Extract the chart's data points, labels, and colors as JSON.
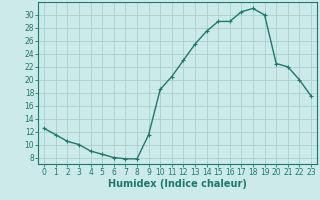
{
  "x": [
    0,
    1,
    2,
    3,
    4,
    5,
    6,
    7,
    8,
    9,
    10,
    11,
    12,
    13,
    14,
    15,
    16,
    17,
    18,
    19,
    20,
    21,
    22,
    23
  ],
  "y": [
    12.5,
    11.5,
    10.5,
    10.0,
    9.0,
    8.5,
    8.0,
    7.8,
    7.8,
    11.5,
    18.5,
    20.5,
    23.0,
    25.5,
    27.5,
    29.0,
    29.0,
    30.5,
    31.0,
    30.0,
    22.5,
    22.0,
    20.0,
    17.5
  ],
  "line_color": "#1a7a6e",
  "marker": "+",
  "marker_size": 3,
  "bg_color": "#cceaea",
  "grid_color": "#aacece",
  "xlabel": "Humidex (Indice chaleur)",
  "xlim": [
    -0.5,
    23.5
  ],
  "ylim": [
    7,
    32
  ],
  "yticks": [
    8,
    10,
    12,
    14,
    16,
    18,
    20,
    22,
    24,
    26,
    28,
    30
  ],
  "xticks": [
    0,
    1,
    2,
    3,
    4,
    5,
    6,
    7,
    8,
    9,
    10,
    11,
    12,
    13,
    14,
    15,
    16,
    17,
    18,
    19,
    20,
    21,
    22,
    23
  ],
  "tick_label_fontsize": 5.5,
  "xlabel_fontsize": 7,
  "line_width": 1.0
}
